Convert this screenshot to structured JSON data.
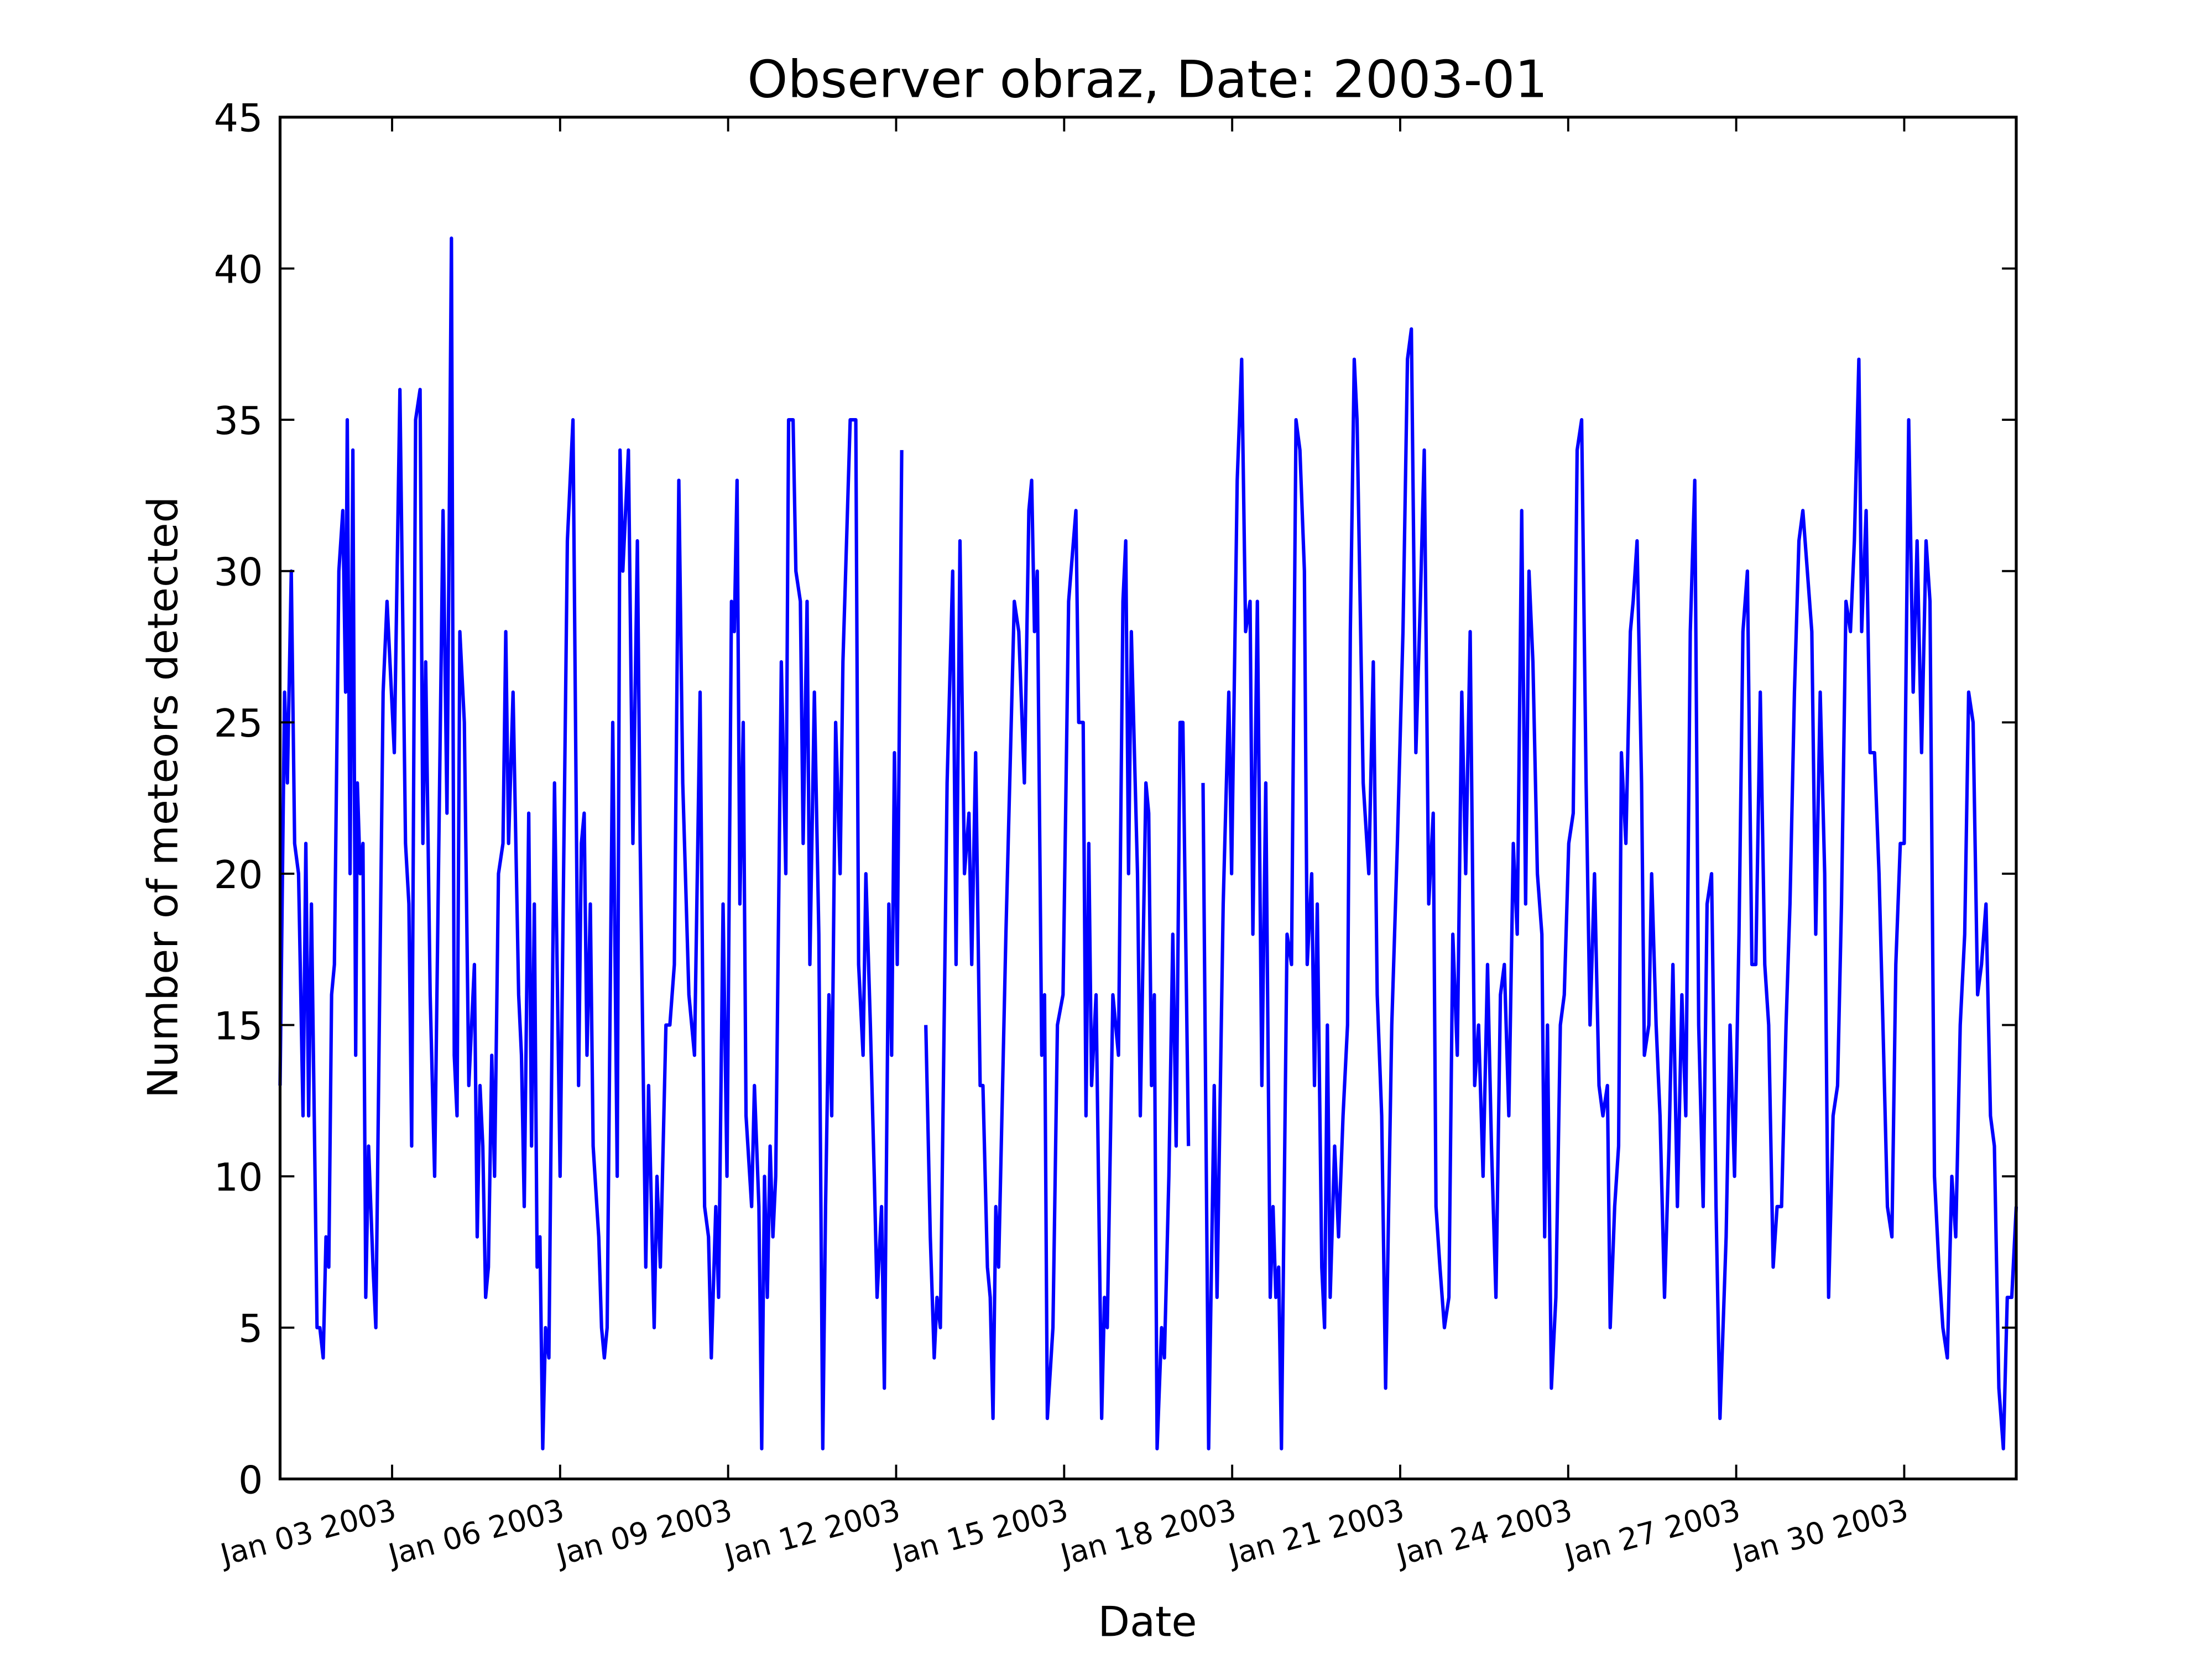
{
  "chart_data": {
    "type": "line",
    "title": "Observer obraz, Date: 2003-01",
    "x_label": "Date",
    "y_label": "Number of meteors detected",
    "xlim": [
      1,
      32
    ],
    "ylim": [
      0,
      45
    ],
    "xticks": [
      {
        "value": 3,
        "label": "Jan 03 2003"
      },
      {
        "value": 6,
        "label": "Jan 06 2003"
      },
      {
        "value": 9,
        "label": "Jan 09 2003"
      },
      {
        "value": 12,
        "label": "Jan 12 2003"
      },
      {
        "value": 15,
        "label": "Jan 15 2003"
      },
      {
        "value": 18,
        "label": "Jan 18 2003"
      },
      {
        "value": 21,
        "label": "Jan 21 2003"
      },
      {
        "value": 24,
        "label": "Jan 24 2003"
      },
      {
        "value": 27,
        "label": "Jan 27 2003"
      },
      {
        "value": 30,
        "label": "Jan 30 2003"
      }
    ],
    "yticks": [
      0,
      5,
      10,
      15,
      20,
      25,
      30,
      35,
      40,
      45
    ],
    "grid": false,
    "x": [
      1.0,
      1.08,
      1.13,
      1.2,
      1.26,
      1.33,
      1.41,
      1.46,
      1.51,
      1.56,
      1.61,
      1.66,
      1.71,
      1.77,
      1.82,
      1.87,
      1.92,
      1.97,
      2.05,
      2.12,
      2.17,
      2.2,
      2.25,
      2.3,
      2.35,
      2.38,
      2.43,
      2.48,
      2.53,
      2.58,
      2.66,
      2.71,
      2.84,
      2.91,
      3.04,
      3.14,
      3.24,
      3.3,
      3.35,
      3.42,
      3.5,
      3.55,
      3.6,
      3.68,
      3.76,
      3.91,
      3.98,
      4.06,
      4.11,
      4.16,
      4.21,
      4.29,
      4.37,
      4.47,
      4.52,
      4.57,
      4.62,
      4.67,
      4.72,
      4.78,
      4.83,
      4.9,
      4.98,
      5.03,
      5.08,
      5.16,
      5.26,
      5.31,
      5.36,
      5.44,
      5.49,
      5.54,
      5.59,
      5.64,
      5.69,
      5.74,
      5.8,
      5.9,
      6.0,
      6.13,
      6.23,
      6.33,
      6.38,
      6.43,
      6.48,
      6.54,
      6.59,
      6.69,
      6.74,
      6.79,
      6.84,
      6.94,
      7.02,
      7.07,
      7.12,
      7.22,
      7.3,
      7.38,
      7.43,
      7.48,
      7.53,
      7.58,
      7.68,
      7.73,
      7.79,
      7.89,
      7.96,
      8.04,
      8.12,
      8.19,
      8.3,
      8.4,
      8.5,
      8.58,
      8.65,
      8.7,
      8.78,
      8.83,
      8.91,
      8.98,
      9.06,
      9.11,
      9.16,
      9.21,
      9.27,
      9.32,
      9.42,
      9.47,
      9.55,
      9.6,
      9.65,
      9.7,
      9.75,
      9.8,
      9.85,
      9.95,
      10.03,
      10.08,
      10.16,
      10.21,
      10.29,
      10.34,
      10.41,
      10.46,
      10.54,
      10.62,
      10.69,
      10.74,
      10.8,
      10.85,
      10.92,
      11.0,
      11.05,
      11.18,
      11.28,
      11.33,
      11.41,
      11.46,
      11.54,
      11.61,
      11.66,
      11.74,
      11.79,
      11.87,
      11.92,
      11.97,
      12.02,
      12.1,
      12.3,
      12.53,
      12.61,
      12.68,
      12.73,
      12.79,
      12.91,
      13.01,
      13.07,
      13.14,
      13.22,
      13.3,
      13.35,
      13.42,
      13.5,
      13.55,
      13.63,
      13.68,
      13.73,
      13.78,
      13.83,
      13.96,
      14.11,
      14.19,
      14.29,
      14.37,
      14.42,
      14.47,
      14.52,
      14.6,
      14.65,
      14.7,
      14.8,
      14.88,
      14.98,
      15.08,
      15.21,
      15.26,
      15.34,
      15.39,
      15.44,
      15.49,
      15.57,
      15.67,
      15.72,
      15.77,
      15.87,
      15.97,
      16.05,
      16.1,
      16.15,
      16.2,
      16.31,
      16.36,
      16.46,
      16.51,
      16.56,
      16.61,
      16.66,
      16.74,
      16.79,
      16.87,
      16.94,
      17.0,
      17.07,
      17.12,
      17.22,
      17.35,
      17.48,
      17.58,
      17.68,
      17.73,
      17.84,
      17.94,
      17.99,
      18.09,
      18.17,
      18.24,
      18.32,
      18.37,
      18.45,
      18.53,
      18.6,
      18.68,
      18.73,
      18.78,
      18.83,
      18.88,
      18.98,
      19.06,
      19.14,
      19.21,
      19.29,
      19.34,
      19.42,
      19.47,
      19.52,
      19.6,
      19.65,
      19.7,
      19.75,
      19.83,
      19.9,
      19.98,
      20.06,
      20.11,
      20.18,
      20.23,
      20.34,
      20.44,
      20.52,
      20.59,
      20.67,
      20.74,
      20.85,
      20.95,
      21.05,
      21.13,
      21.2,
      21.28,
      21.36,
      21.43,
      21.51,
      21.59,
      21.64,
      21.71,
      21.79,
      21.87,
      21.94,
      22.02,
      22.1,
      22.17,
      22.25,
      22.33,
      22.4,
      22.48,
      22.56,
      22.63,
      22.71,
      22.79,
      22.86,
      22.94,
      23.02,
      23.09,
      23.17,
      23.24,
      23.3,
      23.37,
      23.45,
      23.53,
      23.58,
      23.63,
      23.7,
      23.78,
      23.86,
      23.93,
      24.01,
      24.09,
      24.16,
      24.24,
      24.32,
      24.39,
      24.47,
      24.55,
      24.62,
      24.7,
      24.75,
      24.83,
      24.9,
      24.95,
      25.03,
      25.11,
      25.16,
      25.23,
      25.31,
      25.36,
      25.44,
      25.49,
      25.57,
      25.64,
      25.72,
      25.8,
      25.87,
      25.95,
      26.03,
      26.1,
      26.18,
      26.26,
      26.33,
      26.41,
      26.48,
      26.56,
      26.64,
      26.71,
      26.82,
      26.89,
      26.97,
      27.05,
      27.12,
      27.2,
      27.28,
      27.35,
      27.43,
      27.51,
      27.58,
      27.66,
      27.73,
      27.81,
      27.89,
      27.96,
      28.04,
      28.12,
      28.19,
      28.27,
      28.35,
      28.42,
      28.5,
      28.58,
      28.65,
      28.73,
      28.81,
      28.88,
      28.96,
      29.04,
      29.11,
      29.19,
      29.24,
      29.32,
      29.39,
      29.47,
      29.55,
      29.62,
      29.7,
      29.78,
      29.85,
      29.93,
      30.0,
      30.08,
      30.16,
      30.23,
      30.31,
      30.39,
      30.46,
      30.54,
      30.62,
      30.69,
      30.77,
      30.85,
      30.92,
      31.0,
      31.08,
      31.15,
      31.23,
      31.31,
      31.38,
      31.46,
      31.54,
      31.61,
      31.69,
      31.77,
      31.84,
      31.92,
      32.0
    ],
    "series": [
      {
        "color": "#0000ff",
        "values": [
          13,
          26,
          23,
          30,
          21,
          20,
          12,
          21,
          12,
          19,
          12,
          5,
          5,
          4,
          8,
          7,
          16,
          17,
          30,
          32,
          26,
          35,
          20,
          34,
          14,
          23,
          20,
          21,
          6,
          11,
          7,
          5,
          26,
          29,
          24,
          36,
          21,
          19,
          11,
          35,
          36,
          21,
          27,
          16,
          10,
          32,
          22,
          41,
          14,
          12,
          28,
          25,
          13,
          17,
          8,
          13,
          11,
          6,
          7,
          14,
          10,
          20,
          21,
          28,
          21,
          26,
          16,
          14,
          9,
          22,
          11,
          19,
          7,
          8,
          1,
          5,
          4,
          23,
          10,
          31,
          35,
          13,
          21,
          22,
          14,
          19,
          11,
          8,
          5,
          4,
          5,
          25,
          10,
          34,
          30,
          34,
          21,
          31,
          21,
          14,
          7,
          13,
          5,
          10,
          7,
          15,
          15,
          17,
          33,
          23,
          16,
          14,
          26,
          9,
          8,
          4,
          9,
          6,
          19,
          10,
          29,
          28,
          33,
          19,
          25,
          12,
          9,
          13,
          9,
          1,
          10,
          6,
          11,
          8,
          10,
          27,
          20,
          35,
          35,
          30,
          29,
          21,
          29,
          17,
          26,
          18,
          1,
          9,
          16,
          12,
          25,
          20,
          27,
          35,
          35,
          17,
          14,
          20,
          15,
          10,
          6,
          9,
          3,
          19,
          14,
          24,
          17,
          34,
          null,
          15,
          8,
          4,
          6,
          5,
          23,
          30,
          17,
          31,
          20,
          22,
          17,
          24,
          13,
          13,
          7,
          6,
          2,
          9,
          7,
          18,
          29,
          28,
          23,
          32,
          33,
          28,
          30,
          14,
          16,
          2,
          5,
          15,
          16,
          29,
          32,
          25,
          25,
          12,
          21,
          13,
          16,
          2,
          6,
          5,
          16,
          14,
          29,
          31,
          20,
          28,
          20,
          12,
          23,
          22,
          13,
          16,
          1,
          5,
          4,
          10,
          18,
          11,
          25,
          25,
          11,
          null,
          23,
          1,
          13,
          6,
          19,
          26,
          20,
          33,
          37,
          28,
          29,
          18,
          29,
          13,
          23,
          6,
          9,
          6,
          7,
          1,
          18,
          17,
          35,
          34,
          30,
          17,
          20,
          13,
          19,
          7,
          5,
          15,
          6,
          11,
          8,
          12,
          15,
          28,
          37,
          35,
          23,
          20,
          27,
          16,
          12,
          3,
          15,
          21,
          28,
          37,
          38,
          24,
          29,
          34,
          19,
          22,
          9,
          7,
          5,
          6,
          18,
          14,
          26,
          20,
          28,
          13,
          15,
          10,
          17,
          11,
          6,
          16,
          17,
          12,
          21,
          18,
          32,
          19,
          30,
          27,
          20,
          18,
          8,
          15,
          3,
          6,
          15,
          16,
          21,
          22,
          34,
          35,
          23,
          15,
          20,
          13,
          12,
          13,
          5,
          9,
          11,
          24,
          21,
          28,
          29,
          31,
          23,
          14,
          15,
          20,
          15,
          12,
          6,
          11,
          17,
          9,
          16,
          12,
          28,
          33,
          15,
          9,
          19,
          20,
          9,
          2,
          8,
          15,
          10,
          18,
          28,
          30,
          17,
          17,
          26,
          17,
          15,
          7,
          9,
          9,
          15,
          19,
          26,
          31,
          32,
          30,
          28,
          18,
          26,
          20,
          6,
          12,
          13,
          19,
          29,
          28,
          31,
          37,
          28,
          32,
          24,
          24,
          20,
          15,
          9,
          8,
          17,
          21,
          21,
          35,
          26,
          31,
          24,
          31,
          29,
          10,
          7,
          5,
          4,
          10,
          8,
          15,
          18,
          26,
          25,
          16,
          17,
          19,
          12,
          11,
          3,
          1,
          6,
          6,
          9
        ]
      }
    ]
  }
}
